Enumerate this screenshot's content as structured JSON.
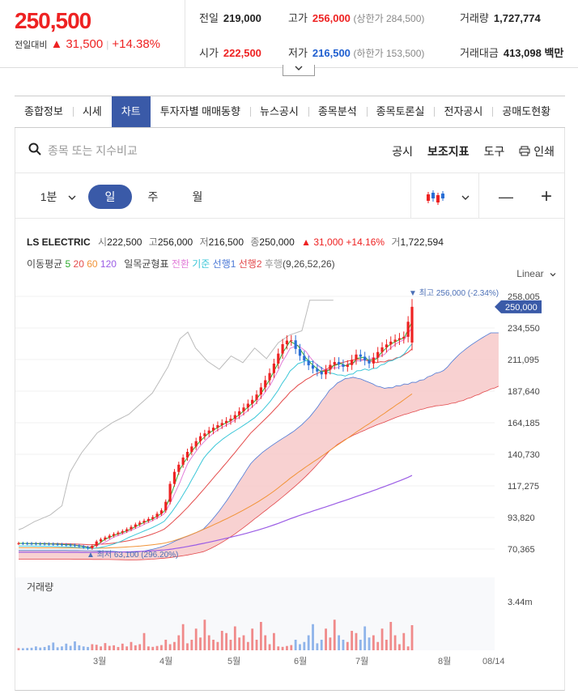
{
  "quote": {
    "price": "250,500",
    "change_label": "전일대비",
    "change_arrow": "▲",
    "change_amount": "31,500",
    "change_pct": "+14.38%"
  },
  "stats": {
    "prev_label": "전일",
    "prev_value": "219,000",
    "high_label": "고가",
    "high_value": "256,000",
    "upper_limit": "(상한가 284,500)",
    "volume_label": "거래량",
    "volume_value": "1,727,774",
    "open_label": "시가",
    "open_value": "222,500",
    "low_label": "저가",
    "low_value": "216,500",
    "lower_limit": "(하한가 153,500)",
    "amount_label": "거래대금",
    "amount_value": "413,098 백만"
  },
  "toggle_icon": "chevron-down-icon",
  "tabs": [
    "종합정보",
    "시세",
    "차트",
    "투자자별 매매동향",
    "뉴스공시",
    "종목분석",
    "종목토론실",
    "전자공시",
    "공매도현황"
  ],
  "active_tab": "차트",
  "search": {
    "placeholder": "종목 또는 지수비교",
    "value": ""
  },
  "tools": {
    "notice": "공시",
    "indicator": "보조지표",
    "tool": "도구",
    "print": "인쇄"
  },
  "periods": {
    "minute": "1분",
    "day": "일",
    "week": "주",
    "month": "월",
    "active": "일"
  },
  "zoom": {
    "out": "—",
    "in": "+"
  },
  "chart_info": {
    "name": "LS ELECTRIC",
    "open_label": "시",
    "open": "222,500",
    "high_label": "고",
    "high": "256,000",
    "low_label": "저",
    "low": "216,500",
    "close_label": "종",
    "close": "250,000",
    "change": "▲ 31,000 +14.16%",
    "vol_label": "거",
    "volume": "1,722,594"
  },
  "indicators": {
    "ma_label": "이동평균",
    "ma": [
      {
        "label": "5",
        "color": "#2cab2c"
      },
      {
        "label": "20",
        "color": "#e44c4c"
      },
      {
        "label": "60",
        "color": "#f19337"
      },
      {
        "label": "120",
        "color": "#9b5de5"
      }
    ],
    "ichimoku_label": "일목균형표",
    "ichimoku": [
      {
        "label": "전환",
        "color": "#e27fd9"
      },
      {
        "label": "기준",
        "color": "#3cc7d8"
      },
      {
        "label": "선행1",
        "color": "#4b78d6"
      },
      {
        "label": "선행2",
        "color": "#e2484b"
      },
      {
        "label": "후행",
        "color": "#999999"
      }
    ],
    "ichimoku_params": "(9,26,52,26)"
  },
  "scale_label": "Linear",
  "chart_data": {
    "type": "candlestick",
    "y_ticks": [
      "258,005",
      "234,550",
      "211,095",
      "187,640",
      "164,185",
      "140,730",
      "117,275",
      "93,820",
      "70,365"
    ],
    "ylim": [
      58638,
      258005
    ],
    "x_ticks": [
      "3월",
      "4월",
      "5월",
      "6월",
      "7월",
      "8월",
      "08/14"
    ],
    "current_price": "250,000",
    "high_annotation": "최고 256,000 (-2.34%)",
    "low_annotation": "최저 63,100 (296.20%)",
    "close_path": [
      [
        0,
        68000
      ],
      [
        8,
        67500
      ],
      [
        14,
        66500
      ],
      [
        18,
        64000
      ],
      [
        20,
        70000
      ],
      [
        24,
        75000
      ],
      [
        27,
        78000
      ],
      [
        30,
        83000
      ],
      [
        34,
        88000
      ],
      [
        37,
        95000
      ],
      [
        39,
        120000
      ],
      [
        42,
        135000
      ],
      [
        46,
        150000
      ],
      [
        50,
        158000
      ],
      [
        54,
        164000
      ],
      [
        57,
        172000
      ],
      [
        60,
        180000
      ],
      [
        64,
        200000
      ],
      [
        67,
        221000
      ],
      [
        69,
        226000
      ],
      [
        71,
        214000
      ],
      [
        74,
        204000
      ],
      [
        77,
        198000
      ],
      [
        80,
        208000
      ],
      [
        83,
        203000
      ],
      [
        86,
        214000
      ],
      [
        89,
        206000
      ],
      [
        92,
        218000
      ],
      [
        95,
        224000
      ],
      [
        98,
        227000
      ],
      [
        100,
        250000
      ]
    ],
    "volume_label": "거래량",
    "volume_tick": "3.44m",
    "volume_pattern": [
      0.05,
      0.04,
      0.06,
      0.08,
      0.2,
      0.1,
      0.15,
      0.3,
      0.55,
      0.12,
      0.2,
      0.45,
      0.25,
      0.65,
      0.3,
      0.2,
      0.15,
      0.4,
      0.35,
      0.2,
      0.5,
      0.25,
      0.3,
      0.15,
      0.45,
      0.2,
      0.6,
      0.3,
      0.1,
      0.35
    ]
  }
}
